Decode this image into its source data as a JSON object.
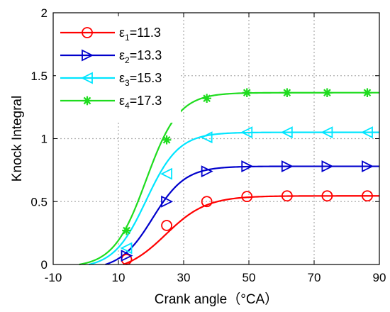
{
  "chart_data": {
    "type": "line",
    "xlabel": "Crank angle（°CA）",
    "ylabel": "Knock Integral",
    "xlim": [
      -10,
      90
    ],
    "ylim": [
      0,
      2
    ],
    "xticks": [
      -10,
      10,
      30,
      50,
      70,
      90
    ],
    "yticks": [
      0,
      0.5,
      1,
      1.5,
      2
    ],
    "xtick_labels": [
      "-10",
      "10",
      "30",
      "50",
      "70",
      "90"
    ],
    "ytick_labels": [
      "0",
      "0.5",
      "1",
      "1.5",
      "2"
    ],
    "grid": true,
    "legend_position": "top-left",
    "series": [
      {
        "name": "ε1=11.3",
        "label_main": "ε",
        "label_sub": "1",
        "label_rest": "=11.3",
        "color": "#ff0000",
        "marker": "circle",
        "curve": {
          "start": 11.5,
          "mid": 24.5,
          "k": 0.16,
          "max": 0.545
        },
        "x": [
          12.5,
          24.8,
          37.1,
          49.4,
          61.7,
          74.0,
          86.3
        ],
        "y": [
          0.04,
          0.31,
          0.5,
          0.54,
          0.545,
          0.545,
          0.545
        ]
      },
      {
        "name": "ε2=13.3",
        "label_main": "ε",
        "label_sub": "2",
        "label_rest": "=13.3",
        "color": "#0000cc",
        "marker": "triangle-right",
        "curve": {
          "start": 6,
          "mid": 20.5,
          "k": 0.2,
          "max": 0.78
        },
        "x": [
          12.5,
          24.8,
          37.1,
          49.4,
          61.7,
          74.0,
          86.3
        ],
        "y": [
          0.07,
          0.5,
          0.74,
          0.78,
          0.78,
          0.78,
          0.78
        ]
      },
      {
        "name": "ε3=15.3",
        "label_main": "ε",
        "label_sub": "3",
        "label_rest": "=15.3",
        "color": "#00e5ff",
        "marker": "triangle-left",
        "curve": {
          "start": 1,
          "mid": 18.5,
          "k": 0.2,
          "max": 1.05
        },
        "x": [
          12.5,
          24.8,
          37.1,
          49.4,
          61.7,
          74.0,
          86.3
        ],
        "y": [
          0.13,
          0.72,
          1.01,
          1.05,
          1.05,
          1.05,
          1.05
        ]
      },
      {
        "name": "ε4=17.3",
        "label_main": "ε",
        "label_sub": "4",
        "label_rest": "=17.3",
        "color": "#1edc1e",
        "marker": "asterisk",
        "curve": {
          "start": -2,
          "mid": 18.5,
          "k": 0.2,
          "max": 1.365
        },
        "x": [
          12.5,
          24.8,
          37.1,
          49.4,
          61.7,
          74.0,
          86.3
        ],
        "y": [
          0.27,
          0.99,
          1.32,
          1.365,
          1.365,
          1.365,
          1.365
        ]
      }
    ]
  }
}
